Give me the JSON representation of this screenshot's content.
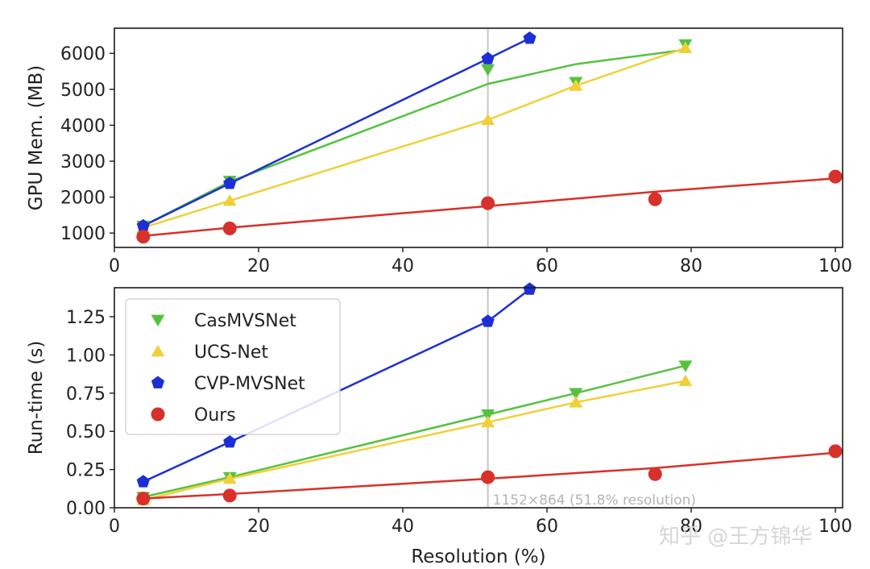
{
  "chart_data": [
    {
      "type": "line",
      "ylabel": "GPU Mem. (MB)",
      "xlabel": "",
      "xlim": [
        0,
        101
      ],
      "ylim": [
        600,
        6700
      ],
      "xticks": [
        0,
        20,
        40,
        60,
        80,
        100
      ],
      "xtick_labels": [
        "0",
        "20",
        "40",
        "60",
        "80",
        "100"
      ],
      "yticks": [
        1000,
        2000,
        3000,
        4000,
        5000,
        6000
      ],
      "ytick_labels": [
        "1000",
        "2000",
        "3000",
        "4000",
        "5000",
        "6000"
      ],
      "vline_x": 51.8,
      "grid": false,
      "series": [
        {
          "name": "CasMVSNet",
          "color": "#55c23f",
          "marker": "triangle-down",
          "x": [
            4,
            16,
            51.8,
            64,
            79.2
          ],
          "y": [
            1200,
            2450,
            5550,
            5200,
            6250
          ],
          "line_x": [
            4,
            16,
            51.8,
            64,
            79.2
          ],
          "line_y": [
            1200,
            2430,
            5150,
            5700,
            6100
          ]
        },
        {
          "name": "UCS-Net",
          "color": "#f0d03a",
          "marker": "triangle-up",
          "x": [
            4,
            16,
            51.8,
            64,
            79.2
          ],
          "y": [
            1150,
            1900,
            4150,
            5100,
            6150
          ]
        },
        {
          "name": "CVP-MVSNet",
          "color": "#1c2fd6",
          "marker": "pentagon",
          "x": [
            4,
            16,
            51.8,
            57.6
          ],
          "y": [
            1200,
            2380,
            5850,
            6420
          ]
        },
        {
          "name": "Ours",
          "color": "#d8302a",
          "marker": "circle",
          "x": [
            4,
            16,
            51.8,
            75,
            100
          ],
          "y": [
            900,
            1130,
            1830,
            1940,
            2570
          ],
          "line_x": [
            4,
            16,
            51.8,
            75,
            100
          ],
          "line_y": [
            920,
            1150,
            1750,
            2150,
            2520
          ]
        }
      ]
    },
    {
      "type": "line",
      "ylabel": "Run-time (s)",
      "xlabel": "Resolution (%)",
      "xlim": [
        0,
        101
      ],
      "ylim": [
        0,
        1.44
      ],
      "xticks": [
        0,
        20,
        40,
        60,
        80,
        100
      ],
      "xtick_labels": [
        "0",
        "20",
        "40",
        "60",
        "80",
        "100"
      ],
      "yticks": [
        0.0,
        0.25,
        0.5,
        0.75,
        1.0,
        1.25
      ],
      "ytick_labels": [
        "0.00",
        "0.25",
        "0.50",
        "0.75",
        "1.00",
        "1.25"
      ],
      "vline_x": 51.8,
      "annotation": "1152×864 (51.8% resolution)",
      "grid": false,
      "legend": {
        "position": "top-left",
        "entries": [
          "CasMVSNet",
          "UCS-Net",
          "CVP-MVSNet",
          "Ours"
        ]
      },
      "series": [
        {
          "name": "CasMVSNet",
          "color": "#55c23f",
          "marker": "triangle-down",
          "x": [
            4,
            16,
            51.8,
            64,
            79.2
          ],
          "y": [
            0.07,
            0.2,
            0.61,
            0.75,
            0.93
          ]
        },
        {
          "name": "UCS-Net",
          "color": "#f0d03a",
          "marker": "triangle-up",
          "x": [
            4,
            16,
            51.8,
            64,
            79.2
          ],
          "y": [
            0.05,
            0.19,
            0.56,
            0.69,
            0.83
          ]
        },
        {
          "name": "CVP-MVSNet",
          "color": "#1c2fd6",
          "marker": "pentagon",
          "x": [
            4,
            16,
            51.8,
            57.6
          ],
          "y": [
            0.17,
            0.43,
            1.22,
            1.43
          ]
        },
        {
          "name": "Ours",
          "color": "#d8302a",
          "marker": "circle",
          "x": [
            4,
            16,
            51.8,
            75,
            100
          ],
          "y": [
            0.06,
            0.08,
            0.2,
            0.22,
            0.37
          ],
          "line_x": [
            4,
            16,
            51.8,
            75,
            100
          ],
          "line_y": [
            0.06,
            0.09,
            0.19,
            0.26,
            0.36
          ]
        }
      ]
    }
  ],
  "watermark": "知乎 @王方锦华"
}
